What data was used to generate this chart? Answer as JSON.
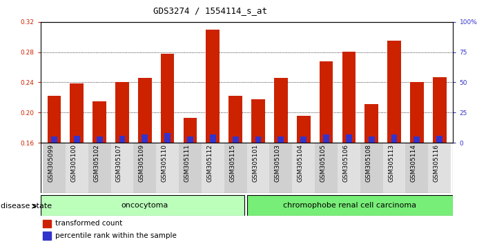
{
  "title": "GDS3274 / 1554114_s_at",
  "samples": [
    "GSM305099",
    "GSM305100",
    "GSM305102",
    "GSM305107",
    "GSM305109",
    "GSM305110",
    "GSM305111",
    "GSM305112",
    "GSM305115",
    "GSM305101",
    "GSM305103",
    "GSM305104",
    "GSM305105",
    "GSM305106",
    "GSM305108",
    "GSM305113",
    "GSM305114",
    "GSM305116"
  ],
  "transformed_count": [
    0.222,
    0.239,
    0.215,
    0.24,
    0.246,
    0.278,
    0.193,
    0.31,
    0.222,
    0.218,
    0.246,
    0.196,
    0.268,
    0.281,
    0.211,
    0.295,
    0.24,
    0.247
  ],
  "percentile_rank": [
    5,
    6,
    5,
    6,
    7,
    8,
    5,
    7,
    5,
    5,
    5,
    5,
    7,
    7,
    5,
    7,
    5,
    6
  ],
  "baseline": 0.16,
  "ylim_left": [
    0.16,
    0.32
  ],
  "ylim_right": [
    0,
    100
  ],
  "yticks_left": [
    0.16,
    0.2,
    0.24,
    0.28,
    0.32
  ],
  "yticks_right": [
    0,
    25,
    50,
    75,
    100
  ],
  "bar_color": "#cc2200",
  "percentile_color": "#3333cc",
  "group1_label": "oncocytoma",
  "group2_label": "chromophobe renal cell carcinoma",
  "group1_count": 9,
  "group2_count": 9,
  "group1_color": "#bbffbb",
  "group2_color": "#77ee77",
  "disease_label": "disease state",
  "legend_red": "transformed count",
  "legend_blue": "percentile rank within the sample",
  "title_fontsize": 9,
  "tick_fontsize": 6.5,
  "label_fontsize": 8
}
